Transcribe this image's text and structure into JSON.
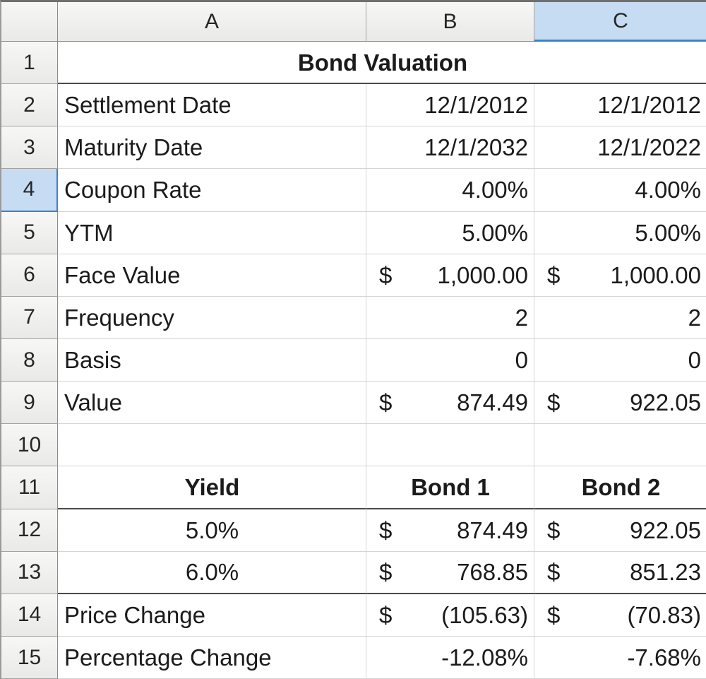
{
  "app": {
    "name": "spreadsheet-grid"
  },
  "colors": {
    "header_bg": "#f1f1f1",
    "selected_header_bg": "#c6dcf3",
    "selected_header_accent": "#4080c8",
    "gridline": "#d5d5d5",
    "section_border": "#4a4a4a",
    "header_border": "#8c8c8c",
    "cell_bg": "#ffffff",
    "text": "#1b1b1b"
  },
  "spreadsheet": {
    "column_headers": [
      "A",
      "B",
      "C"
    ],
    "selection": {
      "column": "C",
      "row": "4"
    },
    "title": "Bond Valuation",
    "rows": [
      {
        "num": "1",
        "cells": [
          {
            "text": "Bond Valuation"
          }
        ]
      },
      {
        "num": "2",
        "cells": [
          {
            "text": "Settlement Date"
          },
          {
            "text": "12/1/2012"
          },
          {
            "text": "12/1/2012"
          }
        ]
      },
      {
        "num": "3",
        "cells": [
          {
            "text": "Maturity Date"
          },
          {
            "text": "12/1/2032"
          },
          {
            "text": "12/1/2022"
          }
        ]
      },
      {
        "num": "4",
        "cells": [
          {
            "text": "Coupon Rate"
          },
          {
            "text": "4.00%"
          },
          {
            "text": "4.00%"
          }
        ]
      },
      {
        "num": "5",
        "cells": [
          {
            "text": "YTM"
          },
          {
            "text": "5.00%"
          },
          {
            "text": "5.00%"
          }
        ]
      },
      {
        "num": "6",
        "cells": [
          {
            "text": "Face Value"
          },
          {
            "currency": "$",
            "amount": "1,000.00"
          },
          {
            "currency": "$",
            "amount": "1,000.00"
          }
        ]
      },
      {
        "num": "7",
        "cells": [
          {
            "text": "Frequency"
          },
          {
            "text": "2"
          },
          {
            "text": "2"
          }
        ]
      },
      {
        "num": "8",
        "cells": [
          {
            "text": "Basis"
          },
          {
            "text": "0"
          },
          {
            "text": "0"
          }
        ]
      },
      {
        "num": "9",
        "cells": [
          {
            "text": "Value"
          },
          {
            "currency": "$",
            "amount": "874.49"
          },
          {
            "currency": "$",
            "amount": "922.05"
          }
        ]
      },
      {
        "num": "10",
        "cells": [
          {
            "text": ""
          },
          {
            "text": ""
          },
          {
            "text": ""
          }
        ]
      },
      {
        "num": "11",
        "cells": [
          {
            "text": "Yield"
          },
          {
            "text": "Bond 1"
          },
          {
            "text": "Bond 2"
          }
        ]
      },
      {
        "num": "12",
        "cells": [
          {
            "text": "5.0%"
          },
          {
            "currency": "$",
            "amount": "874.49"
          },
          {
            "currency": "$",
            "amount": "922.05"
          }
        ]
      },
      {
        "num": "13",
        "cells": [
          {
            "text": "6.0%"
          },
          {
            "currency": "$",
            "amount": "768.85"
          },
          {
            "currency": "$",
            "amount": "851.23"
          }
        ]
      },
      {
        "num": "14",
        "cells": [
          {
            "text": "Price Change"
          },
          {
            "currency": "$",
            "amount": "(105.63)"
          },
          {
            "currency": "$",
            "amount": "(70.83)"
          }
        ]
      },
      {
        "num": "15",
        "cells": [
          {
            "text": "Percentage Change"
          },
          {
            "text": "-12.08%"
          },
          {
            "text": "-7.68%"
          }
        ]
      }
    ]
  }
}
